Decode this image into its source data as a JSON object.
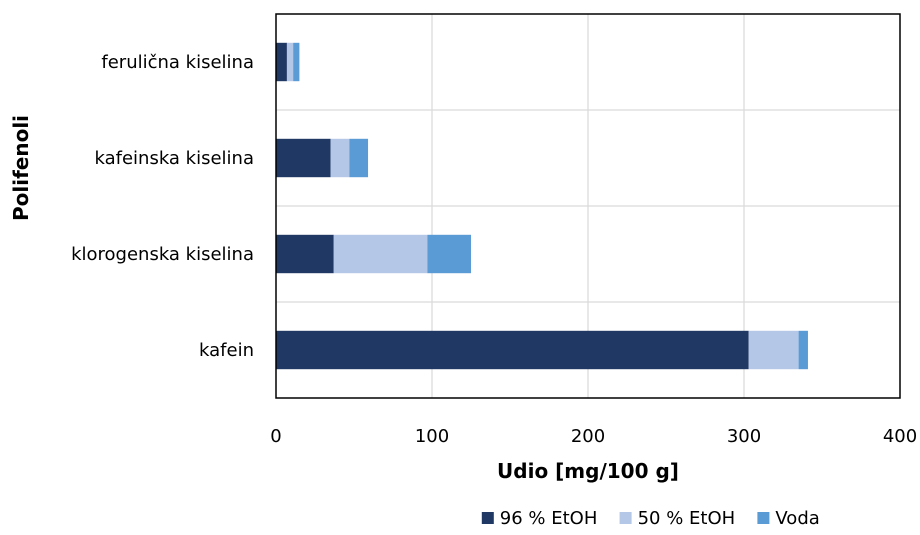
{
  "chart_data": {
    "type": "bar",
    "orientation": "horizontal",
    "stacked": true,
    "categories": [
      "kafein",
      "klorogenska kiselina",
      "kafeinska kiselina",
      "ferulična kiselina"
    ],
    "series": [
      {
        "name": "96 % EtOH",
        "values": [
          303,
          37,
          35,
          7
        ],
        "color": "#203864"
      },
      {
        "name": "50 % EtOH",
        "values": [
          32,
          60,
          12,
          4
        ],
        "color": "#b4c7e7"
      },
      {
        "name": "Voda",
        "values": [
          6,
          28,
          12,
          4
        ],
        "color": "#5b9bd5"
      }
    ],
    "xlabel": "Udio [mg/100 g]",
    "ylabel": "Polifenoli",
    "xlim": [
      0,
      400
    ],
    "xticks": [
      "0",
      "100",
      "200",
      "300",
      "400"
    ],
    "grid": true,
    "legend": "bottom"
  }
}
